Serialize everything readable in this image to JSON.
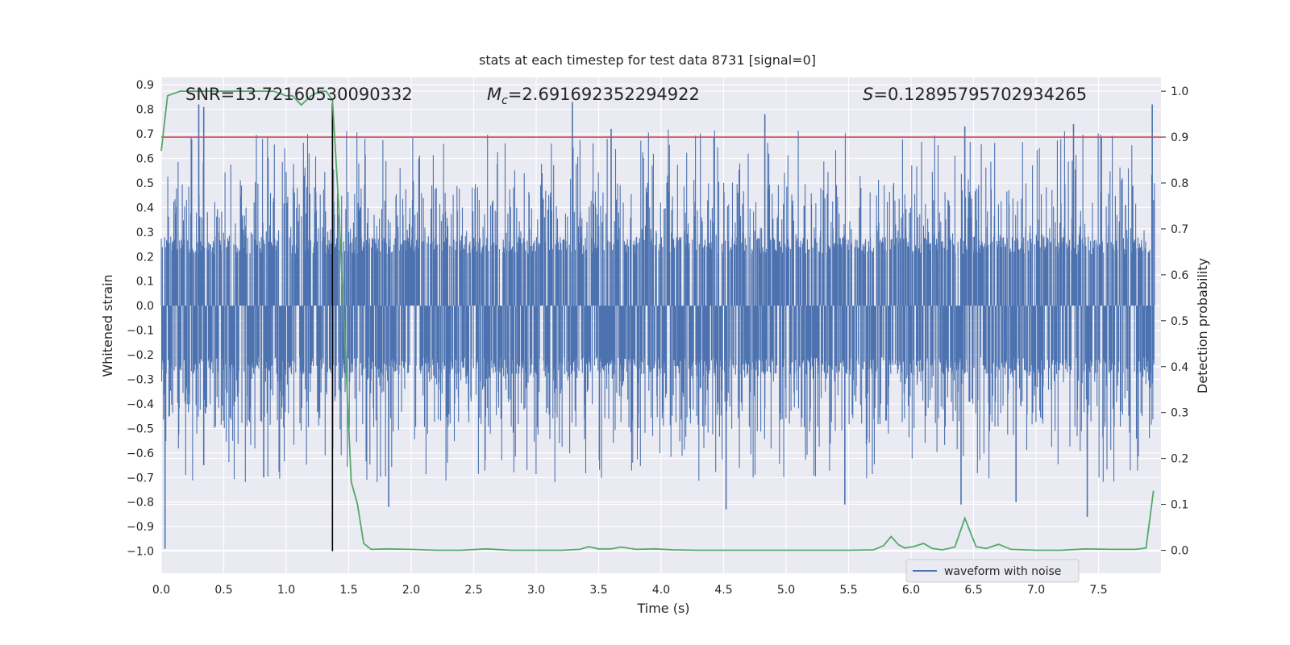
{
  "chart_data": {
    "type": "line",
    "title": "stats at each timestep for test data 8731 [signal=0]",
    "xlabel": "Time (s)",
    "ylabel": "Whitened strain",
    "y2label": "Detection probability",
    "xlim": [
      0.0,
      8.0
    ],
    "ylim": [
      -1.09,
      0.93
    ],
    "y2lim": [
      -0.05,
      1.03
    ],
    "xticks": [
      "0.0",
      "0.5",
      "1.0",
      "1.5",
      "2.0",
      "2.5",
      "3.0",
      "3.5",
      "4.0",
      "4.5",
      "5.0",
      "5.5",
      "6.0",
      "6.5",
      "7.0",
      "7.5"
    ],
    "xtick_values": [
      0.0,
      0.5,
      1.0,
      1.5,
      2.0,
      2.5,
      3.0,
      3.5,
      4.0,
      4.5,
      5.0,
      5.5,
      6.0,
      6.5,
      7.0,
      7.5
    ],
    "yticks": [
      "0.9",
      "0.8",
      "0.7",
      "0.6",
      "0.5",
      "0.4",
      "0.3",
      "0.2",
      "0.1",
      "0.0",
      "−0.1",
      "−0.2",
      "−0.3",
      "−0.4",
      "−0.5",
      "−0.6",
      "−0.7",
      "−0.8",
      "−0.9",
      "−1.0"
    ],
    "ytick_values": [
      0.9,
      0.8,
      0.7,
      0.6,
      0.5,
      0.4,
      0.3,
      0.2,
      0.1,
      0.0,
      -0.1,
      -0.2,
      -0.3,
      -0.4,
      -0.5,
      -0.6,
      -0.7,
      -0.8,
      -0.9,
      -1.0
    ],
    "y2ticks": [
      "1.0",
      "0.9",
      "0.8",
      "0.7",
      "0.6",
      "0.5",
      "0.4",
      "0.3",
      "0.2",
      "0.1",
      "0.0"
    ],
    "y2tick_values": [
      1.0,
      0.9,
      0.8,
      0.7,
      0.6,
      0.5,
      0.4,
      0.3,
      0.2,
      0.1,
      0.0
    ],
    "annotations": {
      "snr": "SNR=13.72160530090332",
      "mc_symbol": "M",
      "mc_sub": "c",
      "mc_value": "=2.691692352294922",
      "s_symbol": "S",
      "s_value": "=0.12895795702934265"
    },
    "legend": {
      "label": "waveform with noise",
      "placement": "lower-right"
    },
    "threshold": {
      "axis": "y2",
      "value": 0.9,
      "color": "#c44e52"
    },
    "marker_time": 1.37,
    "waveform": {
      "name": "waveform with noise",
      "color": "#4c72b0",
      "core_amplitude": 0.28,
      "typical_peak": 0.5,
      "x_end": 7.95,
      "spikes": [
        {
          "x": 0.03,
          "y": -0.99
        },
        {
          "x": 0.3,
          "y": 0.82
        },
        {
          "x": 0.34,
          "y": 0.81
        },
        {
          "x": 0.34,
          "y": -0.65
        },
        {
          "x": 0.82,
          "y": -0.7
        },
        {
          "x": 1.37,
          "y": 0.83
        },
        {
          "x": 1.82,
          "y": -0.82
        },
        {
          "x": 3.29,
          "y": 0.83
        },
        {
          "x": 4.52,
          "y": -0.83
        },
        {
          "x": 5.47,
          "y": -0.81
        },
        {
          "x": 6.4,
          "y": -0.81
        },
        {
          "x": 6.43,
          "y": 0.73
        },
        {
          "x": 6.84,
          "y": -0.8
        },
        {
          "x": 7.41,
          "y": -0.86
        },
        {
          "x": 7.93,
          "y": 0.82
        },
        {
          "x": 3.6,
          "y": 0.72
        },
        {
          "x": 4.83,
          "y": 0.78
        },
        {
          "x": 7.3,
          "y": 0.74
        }
      ]
    },
    "probability": {
      "name": "detection probability",
      "color": "#55a868",
      "x": [
        0.0,
        0.05,
        0.15,
        0.3,
        0.5,
        0.7,
        0.9,
        1.0,
        1.05,
        1.12,
        1.2,
        1.27,
        1.32,
        1.37,
        1.42,
        1.47,
        1.52,
        1.57,
        1.62,
        1.68,
        1.8,
        2.0,
        2.2,
        2.4,
        2.6,
        2.8,
        3.0,
        3.2,
        3.35,
        3.42,
        3.5,
        3.6,
        3.68,
        3.8,
        3.95,
        4.1,
        4.3,
        4.5,
        4.7,
        4.9,
        5.1,
        5.3,
        5.5,
        5.7,
        5.78,
        5.84,
        5.9,
        5.95,
        6.02,
        6.1,
        6.17,
        6.25,
        6.35,
        6.43,
        6.52,
        6.6,
        6.7,
        6.8,
        7.0,
        7.2,
        7.4,
        7.6,
        7.8,
        7.88,
        7.94
      ],
      "y": [
        0.87,
        0.99,
        1.0,
        1.0,
        1.0,
        1.0,
        1.0,
        0.99,
        0.99,
        0.97,
        0.99,
        1.0,
        1.0,
        0.98,
        0.75,
        0.45,
        0.15,
        0.1,
        0.015,
        0.002,
        0.003,
        0.002,
        0.0,
        0.0,
        0.003,
        0.0,
        0.0,
        0.0,
        0.002,
        0.008,
        0.003,
        0.003,
        0.007,
        0.002,
        0.003,
        0.001,
        0.0,
        0.0,
        0.0,
        0.0,
        0.0,
        0.0,
        0.0,
        0.001,
        0.01,
        0.03,
        0.012,
        0.005,
        0.008,
        0.015,
        0.004,
        0.001,
        0.007,
        0.07,
        0.008,
        0.004,
        0.013,
        0.002,
        0.0,
        0.0,
        0.003,
        0.002,
        0.002,
        0.005,
        0.13
      ]
    }
  }
}
